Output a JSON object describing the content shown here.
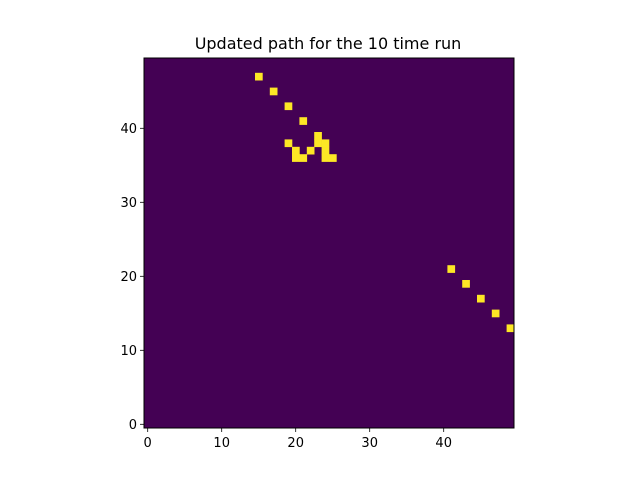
{
  "chart_data": {
    "type": "heatmap",
    "title": "Updated path for the 10 time run",
    "xlabel": "",
    "ylabel": "",
    "grid_size": [
      50,
      50
    ],
    "xlim": [
      -0.5,
      49.5
    ],
    "ylim": [
      49.5,
      -0.5
    ],
    "x_ticks": [
      0,
      10,
      20,
      30,
      40
    ],
    "y_ticks": [
      0,
      10,
      20,
      30,
      40
    ],
    "x_tick_labels": [
      "0",
      "10",
      "20",
      "30",
      "40"
    ],
    "y_tick_labels": [
      "0",
      "10",
      "20",
      "30",
      "40"
    ],
    "colormap": "viridis",
    "background_value": 0,
    "background_color": "#440154",
    "highlight_color": "#fde725",
    "highlighted_cells": [
      [
        49,
        14
      ],
      [
        47,
        16
      ],
      [
        45,
        18
      ],
      [
        43,
        20
      ],
      [
        41,
        22
      ],
      [
        20,
        37
      ],
      [
        21,
        37
      ],
      [
        24,
        37
      ],
      [
        25,
        37
      ],
      [
        20,
        38
      ],
      [
        22,
        38
      ],
      [
        24,
        38
      ],
      [
        19,
        39
      ],
      [
        23,
        39
      ],
      [
        24,
        39
      ],
      [
        23,
        40
      ],
      [
        21,
        42
      ],
      [
        19,
        44
      ],
      [
        17,
        46
      ],
      [
        15,
        48
      ]
    ]
  }
}
